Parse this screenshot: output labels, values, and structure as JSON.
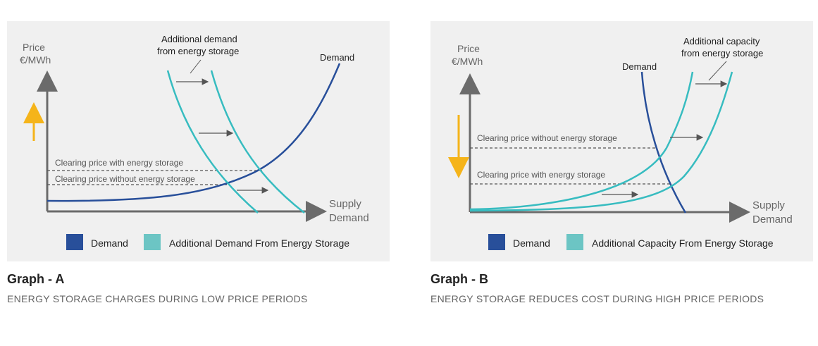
{
  "colors": {
    "demand": "#284f9a",
    "storage": "#37bcc0",
    "legend_storage": "#6cc5c4",
    "axis": "#6b6b6b",
    "arrow_up": "#f5b41a",
    "text": "#333333",
    "muted": "#666666",
    "panel_bg": "#f0f0f0"
  },
  "graphs": [
    {
      "caption_title": "Graph - A",
      "caption_subtitle": "ENERGY STORAGE CHARGES DURING LOW PRICE PERIODS",
      "yaxis_label_1": "Price",
      "yaxis_label_2": "€/MWh",
      "xaxis_label_1": "Supply",
      "xaxis_label_2": "Demand",
      "annotation_1": "Additional demand",
      "annotation_2": "from energy storage",
      "demand_label": "Demand",
      "clearing_price_with": "Clearing price with energy storage",
      "clearing_price_without": "Clearing price without energy storage",
      "price_direction": "up",
      "legend": [
        "Demand",
        "Additional Demand From Energy Storage"
      ]
    },
    {
      "caption_title": "Graph - B",
      "caption_subtitle": "ENERGY STORAGE REDUCES COST DURING HIGH PRICE PERIODS",
      "yaxis_label_1": "Price",
      "yaxis_label_2": "€/MWh",
      "xaxis_label_1": "Supply",
      "xaxis_label_2": "Demand",
      "annotation_1": "Additional capacity",
      "annotation_2": "from energy storage",
      "demand_label": "Demand",
      "clearing_price_without": "Clearing price without energy storage",
      "clearing_price_with": "Clearing price with energy storage",
      "price_direction": "down",
      "legend": [
        "Demand",
        "Additional Capacity From Energy Storage"
      ]
    }
  ],
  "chart_data": [
    {
      "type": "line",
      "title": "Graph - A",
      "xlabel": "Supply Demand",
      "ylabel": "Price €/MWh",
      "series": [
        {
          "name": "Demand",
          "role": "supply curve",
          "points": "rising convex curve from low flat start"
        },
        {
          "name": "Additional Demand From Energy Storage",
          "role": "demand curves shifted right",
          "count": 2
        }
      ],
      "annotations": [
        "Clearing price with energy storage",
        "Clearing price without energy storage"
      ],
      "grid": false
    },
    {
      "type": "line",
      "title": "Graph - B",
      "xlabel": "Supply Demand",
      "ylabel": "Price €/MWh",
      "series": [
        {
          "name": "Demand",
          "role": "demand curve (steep falling)"
        },
        {
          "name": "Additional Capacity From Energy Storage",
          "role": "supply curves shifted right",
          "count": 2
        }
      ],
      "annotations": [
        "Clearing price without energy storage",
        "Clearing price with energy storage"
      ],
      "grid": false
    }
  ]
}
